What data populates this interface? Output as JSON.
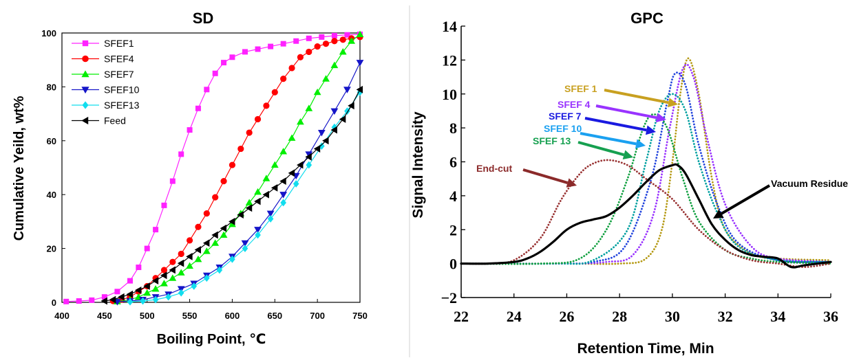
{
  "chart_data": [
    {
      "type": "line",
      "title": "SD",
      "xlabel": "Boiling Point, ℃",
      "ylabel": "Cumulative Yeild, wt%",
      "xlim": [
        400,
        750
      ],
      "ylim": [
        0,
        100
      ],
      "xticks": [
        400,
        450,
        500,
        550,
        600,
        650,
        700,
        750
      ],
      "yticks": [
        0,
        20,
        40,
        60,
        80,
        100
      ],
      "legend": "top-left",
      "series": [
        {
          "name": "SFEF1",
          "color": "#ff22ff",
          "marker": "square",
          "x": [
            405,
            420,
            435,
            450,
            465,
            480,
            490,
            500,
            510,
            520,
            530,
            540,
            550,
            560,
            570,
            580,
            590,
            600,
            615,
            630,
            645,
            660,
            675,
            690,
            705,
            720,
            735,
            750
          ],
          "y": [
            0.3,
            0.5,
            0.8,
            2,
            4,
            8,
            13,
            20,
            27,
            36,
            45,
            55,
            64,
            72,
            79,
            85,
            89,
            91,
            93,
            94,
            95,
            96,
            97,
            98,
            98.5,
            99,
            99.3,
            99.5
          ]
        },
        {
          "name": "SFEF4",
          "color": "#ff0000",
          "marker": "circle",
          "x": [
            460,
            470,
            480,
            490,
            500,
            510,
            520,
            530,
            540,
            550,
            560,
            570,
            580,
            590,
            600,
            610,
            620,
            630,
            640,
            650,
            660,
            670,
            680,
            690,
            700,
            710,
            720,
            730,
            740,
            750
          ],
          "y": [
            0.5,
            1,
            2,
            4,
            6,
            9,
            12,
            15,
            18,
            23,
            28,
            33,
            39,
            45,
            51,
            57,
            63,
            68,
            73,
            78,
            83,
            87,
            91,
            93,
            95,
            96,
            97,
            97.5,
            98,
            98.5
          ]
        },
        {
          "name": "SFEF7",
          "color": "#00ee00",
          "marker": "triangle-up",
          "x": [
            465,
            480,
            490,
            500,
            510,
            520,
            530,
            540,
            550,
            560,
            570,
            580,
            590,
            600,
            610,
            620,
            630,
            640,
            650,
            660,
            670,
            680,
            690,
            700,
            710,
            720,
            730,
            740,
            750
          ],
          "y": [
            0.3,
            1,
            2,
            3.5,
            5,
            7,
            9,
            11,
            13.5,
            16,
            19,
            22,
            25,
            29,
            33,
            37,
            41,
            46,
            51,
            56,
            61,
            67,
            72,
            78,
            83,
            88,
            93,
            97,
            99.5
          ]
        },
        {
          "name": "SFEF10",
          "color": "#1515c8",
          "marker": "triangle-down",
          "x": [
            465,
            480,
            495,
            510,
            525,
            540,
            555,
            570,
            585,
            600,
            615,
            630,
            645,
            660,
            675,
            690,
            705,
            720,
            735,
            750
          ],
          "y": [
            0.2,
            0.5,
            1,
            2,
            3,
            5,
            7,
            10,
            13,
            17,
            22,
            27,
            33,
            40,
            47,
            55,
            63,
            71,
            79,
            89
          ]
        },
        {
          "name": "SFEF13",
          "color": "#11ddee",
          "marker": "diamond",
          "x": [
            480,
            495,
            510,
            525,
            540,
            555,
            570,
            585,
            600,
            615,
            630,
            645,
            660,
            675,
            690,
            705,
            720,
            735,
            750
          ],
          "y": [
            0.2,
            0.5,
            1,
            2,
            3.5,
            6,
            9,
            12,
            16,
            20,
            25,
            31,
            37,
            44,
            51,
            58,
            65,
            71,
            78
          ]
        },
        {
          "name": "Feed",
          "color": "#000000",
          "marker": "triangle-left",
          "x": [
            450,
            460,
            470,
            480,
            490,
            500,
            510,
            520,
            530,
            540,
            550,
            560,
            570,
            580,
            590,
            600,
            610,
            620,
            630,
            640,
            650,
            660,
            670,
            680,
            690,
            700,
            710,
            720,
            730,
            740,
            750
          ],
          "y": [
            0.5,
            1,
            2,
            3,
            4.5,
            6,
            8,
            10,
            12,
            14.5,
            17,
            19.5,
            22,
            25,
            27.5,
            30,
            32.5,
            35,
            37.5,
            40,
            42.5,
            45,
            48,
            51,
            54,
            57,
            60,
            64,
            68,
            73,
            79
          ]
        }
      ]
    },
    {
      "type": "line",
      "title": "GPC",
      "xlabel": "Retention Time, Min",
      "ylabel": "Signal Intensity",
      "xlim": [
        22,
        36
      ],
      "ylim": [
        -2,
        14
      ],
      "xticks": [
        22,
        24,
        26,
        28,
        30,
        32,
        34,
        36
      ],
      "yticks": [
        -2,
        0,
        2,
        4,
        6,
        8,
        10,
        12,
        14
      ],
      "annotations": [
        "SFEF 1",
        "SFEF 4",
        "SFEF 7",
        "SFEF 10",
        "SFEF 13",
        "End-cut",
        "Vacuum Residue"
      ],
      "series": [
        {
          "name": "SFEF 1",
          "color": "#b59a15",
          "style": "dotted",
          "x": [
            22,
            26,
            28,
            29,
            29.6,
            30,
            30.3,
            30.6,
            31,
            31.5,
            32,
            33,
            34,
            36
          ],
          "y": [
            0,
            0,
            0,
            0.3,
            2,
            6,
            10,
            12.1,
            10,
            5,
            2,
            0.6,
            0.3,
            0.2
          ]
        },
        {
          "name": "SFEF 4",
          "color": "#9933ff",
          "style": "dotted",
          "x": [
            22,
            26,
            27.5,
            28.5,
            29.3,
            29.9,
            30.4,
            30.8,
            31.3,
            32,
            33,
            34,
            36
          ],
          "y": [
            0,
            0,
            0.1,
            0.5,
            3,
            8,
            11.5,
            11,
            7.5,
            3.5,
            1,
            0.3,
            0.1
          ]
        },
        {
          "name": "SFEF 7",
          "color": "#2244dd",
          "style": "dotted",
          "x": [
            22,
            25.5,
            27,
            28.2,
            29.2,
            29.8,
            30.1,
            30.5,
            31,
            31.7,
            32.5,
            34,
            36
          ],
          "y": [
            0,
            0,
            0.1,
            1,
            5,
            9.5,
            11.2,
            10.5,
            7,
            3.5,
            1.2,
            0.2,
            0.1
          ]
        },
        {
          "name": "SFEF 10",
          "color": "#00a0a0",
          "style": "dotted",
          "x": [
            22,
            25.5,
            27,
            28.3,
            29,
            29.5,
            30,
            30.5,
            31,
            31.7,
            32.5,
            34,
            36
          ],
          "y": [
            0,
            0,
            0.2,
            2,
            6,
            9,
            10,
            9,
            6,
            3,
            1,
            0.2,
            0.1
          ]
        },
        {
          "name": "SFEF 13",
          "color": "#11a040",
          "style": "dotted",
          "x": [
            22,
            25,
            26.5,
            27.5,
            28.3,
            28.9,
            29.3,
            29.8,
            30.4,
            31,
            32,
            33,
            34,
            36
          ],
          "y": [
            0,
            0,
            0.3,
            2,
            5,
            8,
            8.8,
            8,
            5,
            2.5,
            0.8,
            0.3,
            0.1,
            0
          ]
        },
        {
          "name": "End-cut",
          "color": "#993333",
          "style": "dotted",
          "x": [
            22,
            23,
            24,
            25,
            25.8,
            26.5,
            27,
            27.6,
            28.3,
            29,
            30,
            31,
            32,
            33,
            34,
            35,
            36
          ],
          "y": [
            0,
            0,
            0.2,
            1.5,
            3.8,
            5.3,
            5.9,
            6.1,
            5.8,
            5,
            3.8,
            2,
            0.8,
            0.2,
            0,
            -0.2,
            0
          ]
        },
        {
          "name": "Vacuum Residue",
          "color": "#000000",
          "style": "solid",
          "x": [
            22,
            23,
            24,
            24.5,
            25,
            25.5,
            26,
            26.5,
            27,
            27.5,
            28,
            28.5,
            29,
            29.5,
            30,
            30.2,
            30.5,
            31,
            31.5,
            32,
            32.5,
            33,
            33.5,
            34,
            34.5,
            35,
            36
          ],
          "y": [
            0,
            0,
            0.1,
            0.3,
            0.7,
            1.3,
            2,
            2.4,
            2.6,
            2.8,
            3.3,
            4,
            4.8,
            5.5,
            5.8,
            5.8,
            5.3,
            3.8,
            2.3,
            1.4,
            0.8,
            0.5,
            0.4,
            0.3,
            -0.2,
            -0.1,
            0.1
          ]
        }
      ]
    }
  ]
}
